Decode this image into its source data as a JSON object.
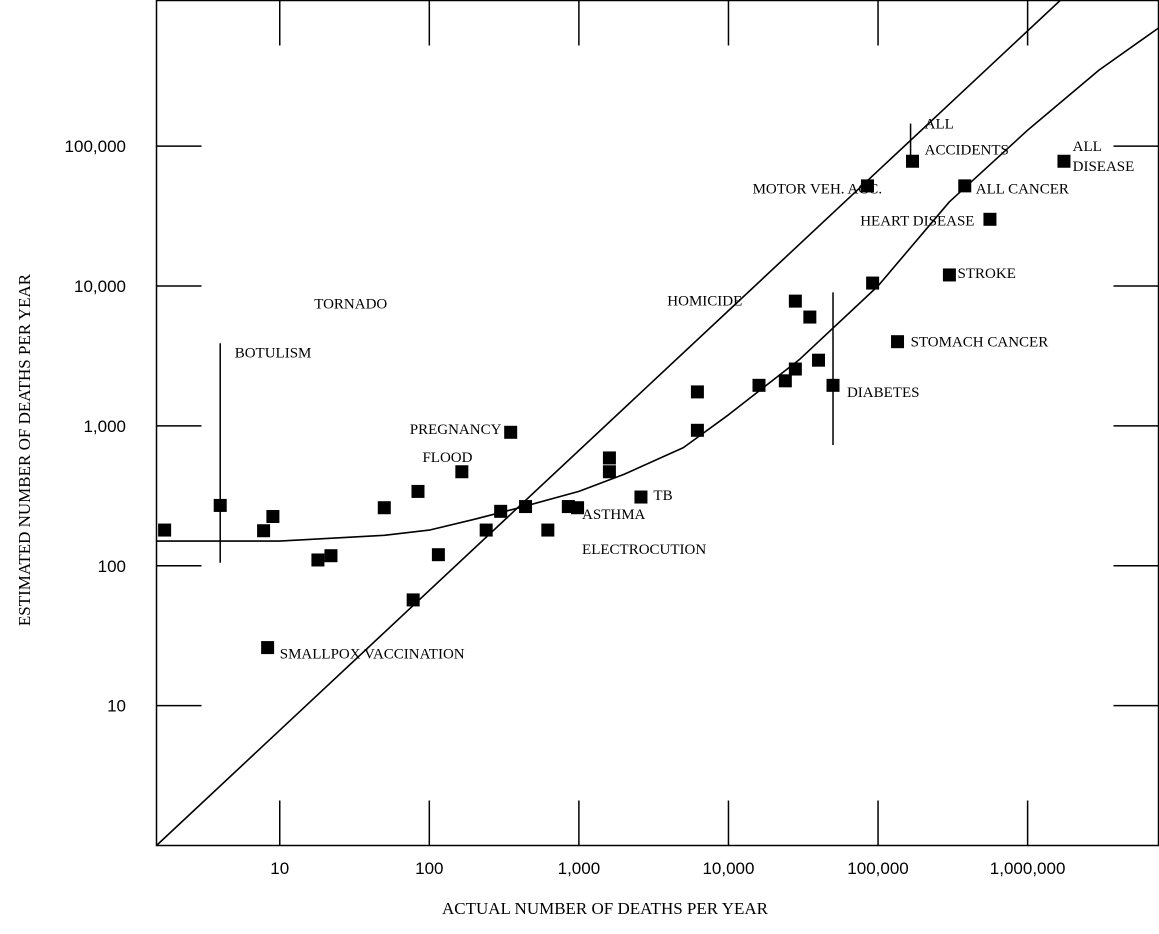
{
  "chart_data": {
    "type": "scatter",
    "title": "",
    "xlabel": "ACTUAL NUMBER OF DEATHS PER YEAR",
    "ylabel": "ESTIMATED NUMBER OF DEATHS PER YEAR",
    "xscale": "log",
    "yscale": "log",
    "xlim": [
      1.5,
      7500000
    ],
    "ylim": [
      1,
      1100000
    ],
    "x_ticks": [
      {
        "value": 10,
        "label": "10"
      },
      {
        "value": 100,
        "label": "100"
      },
      {
        "value": 1000,
        "label": "1,000"
      },
      {
        "value": 10000,
        "label": "10,000"
      },
      {
        "value": 100000,
        "label": "100,000"
      },
      {
        "value": 1000000,
        "label": "1,000,000"
      }
    ],
    "y_ticks": [
      {
        "value": 10,
        "label": "10"
      },
      {
        "value": 100,
        "label": "100"
      },
      {
        "value": 1000,
        "label": "1,000"
      },
      {
        "value": 10000,
        "label": "10,000"
      },
      {
        "value": 100000,
        "label": "100,000"
      }
    ],
    "points": [
      {
        "x": 1.7,
        "y": 180
      },
      {
        "x": 4,
        "y": 270
      },
      {
        "x": 7.8,
        "y": 178
      },
      {
        "x": 9,
        "y": 225
      },
      {
        "x": 8.3,
        "y": 26
      },
      {
        "x": 18,
        "y": 110
      },
      {
        "x": 22,
        "y": 118
      },
      {
        "x": 50,
        "y": 260
      },
      {
        "x": 78,
        "y": 57
      },
      {
        "x": 84,
        "y": 340
      },
      {
        "x": 115,
        "y": 120
      },
      {
        "x": 165,
        "y": 470
      },
      {
        "x": 240,
        "y": 180
      },
      {
        "x": 300,
        "y": 245
      },
      {
        "x": 350,
        "y": 900
      },
      {
        "x": 440,
        "y": 265
      },
      {
        "x": 620,
        "y": 180
      },
      {
        "x": 850,
        "y": 265
      },
      {
        "x": 980,
        "y": 260
      },
      {
        "x": 1600,
        "y": 470
      },
      {
        "x": 1600,
        "y": 590
      },
      {
        "x": 2600,
        "y": 310
      },
      {
        "x": 6200,
        "y": 1750
      },
      {
        "x": 6200,
        "y": 930
      },
      {
        "x": 16000,
        "y": 1950
      },
      {
        "x": 24000,
        "y": 2100
      },
      {
        "x": 28000,
        "y": 2550
      },
      {
        "x": 28000,
        "y": 7800
      },
      {
        "x": 35000,
        "y": 6000
      },
      {
        "x": 40000,
        "y": 2950
      },
      {
        "x": 50000,
        "y": 1950
      },
      {
        "x": 85000,
        "y": 52000
      },
      {
        "x": 92000,
        "y": 10500
      },
      {
        "x": 170000,
        "y": 78000
      },
      {
        "x": 135000,
        "y": 4000
      },
      {
        "x": 300000,
        "y": 12000
      },
      {
        "x": 380000,
        "y": 52000
      },
      {
        "x": 560000,
        "y": 30000
      },
      {
        "x": 1750000,
        "y": 78000
      }
    ],
    "annotations": [
      {
        "text": "TORNADO",
        "x": 17,
        "y": 7500,
        "anchor": "start"
      },
      {
        "text": "BOTULISM",
        "x": 5,
        "y": 3350,
        "anchor": "start"
      },
      {
        "text": "PREGNANCY",
        "x": 74,
        "y": 950,
        "anchor": "start"
      },
      {
        "text": "FLOOD",
        "x": 90,
        "y": 600,
        "anchor": "start"
      },
      {
        "text": "HOMICIDE",
        "x": 3900,
        "y": 7900,
        "anchor": "start"
      },
      {
        "text": "MOTOR VEH. ACC.",
        "x": 14500,
        "y": 50000,
        "anchor": "start"
      },
      {
        "text": "ALL",
        "x": 205000,
        "y": 145000,
        "anchor": "start"
      },
      {
        "text": "ACCIDENTS",
        "x": 205000,
        "y": 95000,
        "anchor": "start"
      },
      {
        "text": "ALL",
        "x": 2000000,
        "y": 100000,
        "anchor": "start"
      },
      {
        "text": "DISEASE",
        "x": 2000000,
        "y": 72000,
        "anchor": "start"
      },
      {
        "text": "ALL CANCER",
        "x": 450000,
        "y": 50000,
        "anchor": "start"
      },
      {
        "text": "HEART DISEASE",
        "x": 76000,
        "y": 29500,
        "anchor": "start"
      },
      {
        "text": "STROKE",
        "x": 340000,
        "y": 12400,
        "anchor": "start"
      },
      {
        "text": "STOMACH CANCER",
        "x": 165000,
        "y": 4000,
        "anchor": "start"
      },
      {
        "text": "DIABETES",
        "x": 62000,
        "y": 1750,
        "anchor": "start"
      },
      {
        "text": "TB",
        "x": 3150,
        "y": 320,
        "anchor": "start"
      },
      {
        "text": "ASTHMA",
        "x": 1050,
        "y": 235,
        "anchor": "start"
      },
      {
        "text": "ELECTROCUTION",
        "x": 1050,
        "y": 132,
        "anchor": "start"
      },
      {
        "text": "SMALLPOX VACCINATION",
        "x": 10,
        "y": 23.5,
        "anchor": "start"
      }
    ],
    "error_bars": [
      {
        "x": 4,
        "y_low": 105,
        "y_high": 3900
      },
      {
        "x": 50000,
        "y_low": 730,
        "y_high": 9000
      },
      {
        "x": 165000,
        "y_low": 73000,
        "y_high": 145000
      }
    ],
    "reference_lines": [
      {
        "name": "identity",
        "points": [
          [
            1.5,
            1
          ],
          [
            7500000,
            5000000
          ]
        ]
      },
      {
        "name": "fitted",
        "points": [
          [
            1.5,
            150
          ],
          [
            10,
            150
          ],
          [
            50,
            165
          ],
          [
            100,
            180
          ],
          [
            200,
            215
          ],
          [
            400,
            260
          ],
          [
            1000,
            340
          ],
          [
            2000,
            450
          ],
          [
            5000,
            700
          ],
          [
            10000,
            1200
          ],
          [
            30000,
            3000
          ],
          [
            100000,
            10000
          ],
          [
            300000,
            40000
          ],
          [
            1000000,
            130000
          ],
          [
            3000000,
            350000
          ],
          [
            7500000,
            700000
          ]
        ]
      }
    ]
  }
}
